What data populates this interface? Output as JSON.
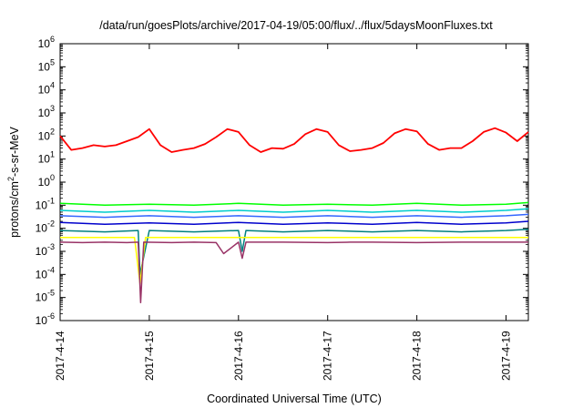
{
  "chart_data": {
    "type": "line",
    "title": "/data/run/goesPlots/archive/2017-04-19/05:00/flux/../flux/5daysMoonFluxes.txt",
    "xlabel": "Coordinated Universal Time (UTC)",
    "ylabel": {
      "base": "protons/cm",
      "sup": "2",
      "rest": "-s-sr-MeV"
    },
    "yscale": "log",
    "ylim": [
      1e-06,
      1000000.0
    ],
    "y_ticks": [
      {
        "base": "10",
        "exp": "-6"
      },
      {
        "base": "10",
        "exp": "-5"
      },
      {
        "base": "10",
        "exp": "-4"
      },
      {
        "base": "10",
        "exp": "-3"
      },
      {
        "base": "10",
        "exp": "-2"
      },
      {
        "base": "10",
        "exp": "-1"
      },
      {
        "base": "10",
        "exp": "0"
      },
      {
        "base": "10",
        "exp": "1"
      },
      {
        "base": "10",
        "exp": "2"
      },
      {
        "base": "10",
        "exp": "3"
      },
      {
        "base": "10",
        "exp": "4"
      },
      {
        "base": "10",
        "exp": "5"
      },
      {
        "base": "10",
        "exp": "6"
      }
    ],
    "x_ticks": [
      "2017-4-14",
      "2017-4-15",
      "2017-4-16",
      "2017-4-17",
      "2017-4-18",
      "2017-4-19"
    ],
    "xlim": [
      "2017-04-14 00:00",
      "2017-04-19 06:00"
    ],
    "grid": false,
    "legend": "none",
    "series": [
      {
        "color": "#ff0000",
        "x": [
          "04-14 00:00",
          "04-14 03:00",
          "04-14 06:00",
          "04-14 09:00",
          "04-14 12:00",
          "04-14 15:00",
          "04-14 18:00",
          "04-14 21:00",
          "04-15 00:00",
          "04-15 03:00",
          "04-15 06:00",
          "04-15 09:00",
          "04-15 12:00",
          "04-15 15:00",
          "04-15 18:00",
          "04-15 21:00",
          "04-16 00:00",
          "04-16 03:00",
          "04-16 06:00",
          "04-16 09:00",
          "04-16 12:00",
          "04-16 15:00",
          "04-16 18:00",
          "04-16 21:00",
          "04-17 00:00",
          "04-17 03:00",
          "04-17 06:00",
          "04-17 09:00",
          "04-17 12:00",
          "04-17 15:00",
          "04-17 18:00",
          "04-17 21:00",
          "04-18 00:00",
          "04-18 03:00",
          "04-18 06:00",
          "04-18 09:00",
          "04-18 12:00",
          "04-18 15:00",
          "04-18 18:00",
          "04-18 21:00",
          "04-19 00:00",
          "04-19 03:00",
          "04-19 06:00"
        ],
        "y": [
          100,
          25,
          30,
          40,
          35,
          40,
          60,
          90,
          200,
          40,
          20,
          25,
          30,
          45,
          90,
          200,
          150,
          40,
          20,
          30,
          28,
          45,
          120,
          200,
          150,
          40,
          22,
          25,
          30,
          50,
          130,
          200,
          160,
          45,
          25,
          30,
          30,
          60,
          150,
          220,
          140,
          60,
          150
        ]
      },
      {
        "color": "#00ff00",
        "x": [
          "04-14 00:00",
          "04-14 12:00",
          "04-15 00:00",
          "04-15 12:00",
          "04-16 00:00",
          "04-16 12:00",
          "04-17 00:00",
          "04-17 12:00",
          "04-18 00:00",
          "04-18 12:00",
          "04-19 00:00",
          "04-19 06:00"
        ],
        "y": [
          0.12,
          0.1,
          0.11,
          0.1,
          0.12,
          0.1,
          0.11,
          0.1,
          0.12,
          0.1,
          0.11,
          0.13
        ]
      },
      {
        "color": "#00cccc",
        "x": [
          "04-14 00:00",
          "04-14 12:00",
          "04-15 00:00",
          "04-15 12:00",
          "04-16 00:00",
          "04-16 12:00",
          "04-17 00:00",
          "04-17 12:00",
          "04-18 00:00",
          "04-18 12:00",
          "04-19 00:00",
          "04-19 06:00"
        ],
        "y": [
          0.06,
          0.05,
          0.06,
          0.05,
          0.06,
          0.05,
          0.06,
          0.05,
          0.06,
          0.05,
          0.06,
          0.07
        ]
      },
      {
        "color": "#3366ff",
        "x": [
          "04-14 00:00",
          "04-14 12:00",
          "04-15 00:00",
          "04-15 12:00",
          "04-16 00:00",
          "04-16 12:00",
          "04-17 00:00",
          "04-17 12:00",
          "04-18 00:00",
          "04-18 12:00",
          "04-19 00:00",
          "04-19 06:00"
        ],
        "y": [
          0.035,
          0.03,
          0.035,
          0.03,
          0.035,
          0.03,
          0.035,
          0.03,
          0.035,
          0.03,
          0.035,
          0.04
        ]
      },
      {
        "color": "#0000cc",
        "x": [
          "04-14 00:00",
          "04-14 12:00",
          "04-15 00:00",
          "04-15 12:00",
          "04-16 00:00",
          "04-16 12:00",
          "04-17 00:00",
          "04-17 12:00",
          "04-18 00:00",
          "04-18 12:00",
          "04-19 00:00",
          "04-19 06:00"
        ],
        "y": [
          0.018,
          0.015,
          0.017,
          0.015,
          0.018,
          0.015,
          0.017,
          0.015,
          0.018,
          0.015,
          0.017,
          0.02
        ]
      },
      {
        "color": "#008080",
        "x": [
          "04-14 00:00",
          "04-14 12:00",
          "04-14 21:00",
          "04-14 21:30",
          "04-15 00:00",
          "04-15 12:00",
          "04-16 00:00",
          "04-16 01:00",
          "04-16 02:00",
          "04-16 12:00",
          "04-17 00:00",
          "04-17 12:00",
          "04-18 00:00",
          "04-18 12:00",
          "04-19 00:00",
          "04-19 06:00"
        ],
        "y": [
          0.008,
          0.007,
          0.008,
          0.0001,
          0.008,
          0.007,
          0.008,
          0.001,
          0.008,
          0.007,
          0.008,
          0.007,
          0.008,
          0.007,
          0.008,
          0.009
        ]
      },
      {
        "color": "#ffff00",
        "x": [
          "04-14 00:00",
          "04-14 12:00",
          "04-14 20:00",
          "04-14 21:30",
          "04-14 23:00",
          "04-15 12:00",
          "04-16 00:00",
          "04-16 12:00",
          "04-17 00:00",
          "04-17 12:00",
          "04-18 00:00",
          "04-18 12:00",
          "04-19 00:00",
          "04-19 06:00"
        ],
        "y": [
          0.004,
          0.004,
          0.004,
          4e-05,
          0.004,
          0.004,
          0.004,
          0.004,
          0.004,
          0.004,
          0.004,
          0.004,
          0.004,
          0.004
        ]
      },
      {
        "color": "#993366",
        "x": [
          "04-14 00:00",
          "04-14 06:00",
          "04-14 12:00",
          "04-14 18:00",
          "04-14 21:00",
          "04-14 21:40",
          "04-14 22:30",
          "04-15 06:00",
          "04-15 12:00",
          "04-15 18:00",
          "04-15 20:00",
          "04-16 00:00",
          "04-16 01:00",
          "04-16 02:00",
          "04-16 12:00",
          "04-17 00:00",
          "04-17 06:00",
          "04-17 12:00",
          "04-18 00:00",
          "04-18 12:00",
          "04-19 00:00",
          "04-19 06:00"
        ],
        "y": [
          0.0025,
          0.0024,
          0.0025,
          0.0024,
          0.0025,
          6e-06,
          0.0025,
          0.0024,
          0.0025,
          0.0024,
          0.0008,
          0.0025,
          0.0005,
          0.0025,
          0.0025,
          0.0024,
          0.0025,
          0.0025,
          0.0024,
          0.0025,
          0.0025,
          0.0025
        ]
      }
    ]
  }
}
